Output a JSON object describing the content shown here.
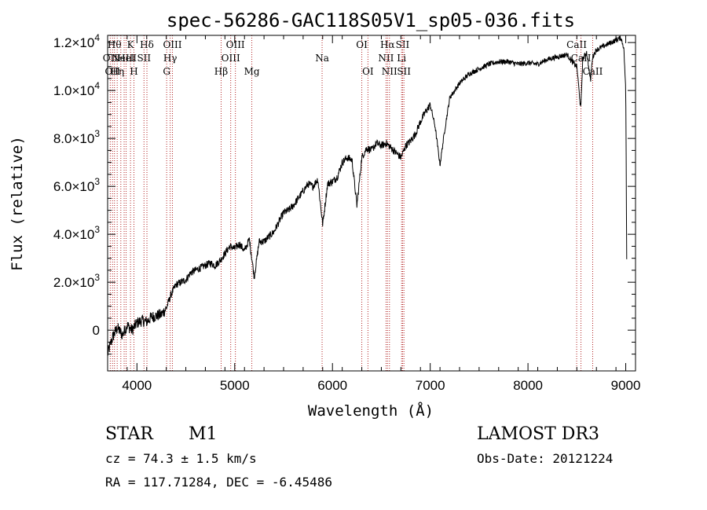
{
  "chart_data": {
    "type": "line",
    "title": "spec-56286-GAC118S05V1_sp05-036.fits",
    "xlabel": "Wavelength (Å)",
    "ylabel": "Flux (relative)",
    "xlim": [
      3700,
      9100
    ],
    "ylim": [
      -1700,
      12300
    ],
    "x_ticks": [
      {
        "value": 4000,
        "label": "4000"
      },
      {
        "value": 5000,
        "label": "5000"
      },
      {
        "value": 6000,
        "label": "6000"
      },
      {
        "value": 7000,
        "label": "7000"
      },
      {
        "value": 8000,
        "label": "8000"
      },
      {
        "value": 9000,
        "label": "9000"
      }
    ],
    "y_ticks": [
      {
        "value": 0,
        "mant": "0",
        "exp": ""
      },
      {
        "value": 2000,
        "mant": "2.0×10",
        "exp": "3"
      },
      {
        "value": 4000,
        "mant": "4.0×10",
        "exp": "3"
      },
      {
        "value": 6000,
        "mant": "6.0×10",
        "exp": "3"
      },
      {
        "value": 8000,
        "mant": "8.0×10",
        "exp": "3"
      },
      {
        "value": 10000,
        "mant": "1.0×10",
        "exp": "4"
      },
      {
        "value": 12000,
        "mant": "1.2×10",
        "exp": "4"
      }
    ],
    "series": [
      {
        "name": "flux",
        "color": "#000000",
        "x": [
          3700,
          3750,
          3800,
          3850,
          3900,
          3950,
          4000,
          4050,
          4100,
          4150,
          4200,
          4250,
          4300,
          4350,
          4400,
          4450,
          4500,
          4550,
          4600,
          4650,
          4700,
          4750,
          4800,
          4850,
          4900,
          4950,
          5000,
          5050,
          5100,
          5150,
          5200,
          5250,
          5300,
          5350,
          5400,
          5450,
          5500,
          5550,
          5600,
          5650,
          5700,
          5750,
          5800,
          5850,
          5900,
          5950,
          6000,
          6050,
          6100,
          6150,
          6200,
          6250,
          6300,
          6350,
          6400,
          6450,
          6500,
          6550,
          6600,
          6650,
          6700,
          6750,
          6800,
          6850,
          6900,
          6950,
          7000,
          7050,
          7100,
          7150,
          7200,
          7250,
          7300,
          7350,
          7400,
          7450,
          7500,
          7600,
          7700,
          7800,
          7900,
          8000,
          8100,
          8200,
          8300,
          8400,
          8450,
          8500,
          8540,
          8560,
          8600,
          8640,
          8660,
          8700,
          8750,
          8800,
          8850,
          8900,
          8950,
          8980,
          9000,
          9010
        ],
        "y": [
          -1000,
          -300,
          100,
          -200,
          200,
          0,
          300,
          400,
          350,
          550,
          600,
          650,
          900,
          1500,
          1900,
          2000,
          2100,
          2400,
          2500,
          2600,
          2700,
          2800,
          2700,
          2900,
          3200,
          3500,
          3400,
          3600,
          3300,
          3800,
          2200,
          3700,
          3700,
          3900,
          4100,
          4500,
          4900,
          5000,
          5200,
          5500,
          5800,
          6100,
          6000,
          6300,
          4400,
          6100,
          6200,
          6400,
          7000,
          7200,
          7100,
          5200,
          7200,
          7600,
          7500,
          7800,
          7700,
          7800,
          7600,
          7400,
          7200,
          7700,
          7900,
          8200,
          8700,
          9100,
          9400,
          8500,
          6900,
          8400,
          9700,
          10000,
          10300,
          10500,
          10700,
          10800,
          10900,
          11100,
          11200,
          11200,
          11100,
          11150,
          11100,
          11300,
          11400,
          11500,
          11200,
          11000,
          9200,
          11300,
          11600,
          10400,
          11400,
          11700,
          11800,
          11900,
          12000,
          12100,
          12200,
          11800,
          10000,
          3000
        ]
      }
    ],
    "line_color": "#b22222",
    "lines": [
      {
        "wl": 3727,
        "label": "OII",
        "row": 1
      },
      {
        "wl": 3750,
        "label": "OII",
        "row": 2
      },
      {
        "wl": 3770,
        "label": "Hθ",
        "row": 0
      },
      {
        "wl": 3798,
        "label": "Hη",
        "row": 2
      },
      {
        "wl": 3835,
        "label": "",
        "row": 0
      },
      {
        "wl": 3869,
        "label": "NeIII",
        "row": 1
      },
      {
        "wl": 3889,
        "label": "HeI",
        "row": 1
      },
      {
        "wl": 3934,
        "label": "K",
        "row": 0
      },
      {
        "wl": 3969,
        "label": "H",
        "row": 2
      },
      {
        "wl": 4072,
        "label": "SII",
        "row": 1
      },
      {
        "wl": 4102,
        "label": "Hδ",
        "row": 0
      },
      {
        "wl": 4304,
        "label": "G",
        "row": 2
      },
      {
        "wl": 4340,
        "label": "Hγ",
        "row": 1
      },
      {
        "wl": 4363,
        "label": "OIII",
        "row": 0
      },
      {
        "wl": 4861,
        "label": "Hβ",
        "row": 2
      },
      {
        "wl": 4959,
        "label": "OIII",
        "row": 1
      },
      {
        "wl": 5007,
        "label": "OIII",
        "row": 0
      },
      {
        "wl": 5175,
        "label": "Mg",
        "row": 2
      },
      {
        "wl": 5894,
        "label": "Na",
        "row": 1
      },
      {
        "wl": 6300,
        "label": "OI",
        "row": 0
      },
      {
        "wl": 6363,
        "label": "OI",
        "row": 2
      },
      {
        "wl": 6548,
        "label": "NII",
        "row": 1
      },
      {
        "wl": 6563,
        "label": "Hα",
        "row": 0
      },
      {
        "wl": 6583,
        "label": "NII",
        "row": 2
      },
      {
        "wl": 6707,
        "label": "Li",
        "row": 1
      },
      {
        "wl": 6717,
        "label": "SII",
        "row": 0
      },
      {
        "wl": 6731,
        "label": "SII",
        "row": 2
      },
      {
        "wl": 8498,
        "label": "CaII",
        "row": 0
      },
      {
        "wl": 8542,
        "label": "CaII",
        "row": 1
      },
      {
        "wl": 8662,
        "label": "CaII",
        "row": 2
      }
    ]
  },
  "info": {
    "class_label": "STAR",
    "subclass": "M1",
    "survey": "LAMOST DR3",
    "redshift": "cz = 74.3 ± 1.5 km/s",
    "obs_date": "Obs-Date: 20121224",
    "coords": "RA = 117.71284, DEC =  -6.45486"
  }
}
